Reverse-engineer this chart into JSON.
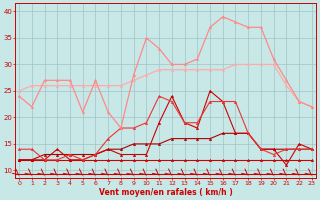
{
  "x": [
    0,
    1,
    2,
    3,
    4,
    5,
    6,
    7,
    8,
    9,
    10,
    11,
    12,
    13,
    14,
    15,
    16,
    17,
    18,
    19,
    20,
    21,
    22,
    23
  ],
  "series": [
    {
      "name": "flat_dark_bottom",
      "color": "#cc0000",
      "linewidth": 0.8,
      "marker": "^",
      "markersize": 1.8,
      "y": [
        12,
        12,
        12,
        12,
        12,
        12,
        12,
        12,
        12,
        12,
        12,
        12,
        12,
        12,
        12,
        12,
        12,
        12,
        12,
        12,
        12,
        12,
        12,
        12
      ]
    },
    {
      "name": "slight_rise_dark",
      "color": "#aa0000",
      "linewidth": 0.8,
      "marker": "^",
      "markersize": 1.8,
      "y": [
        12,
        12,
        13,
        13,
        13,
        13,
        13,
        14,
        14,
        15,
        15,
        15,
        16,
        16,
        16,
        16,
        17,
        17,
        17,
        14,
        14,
        14,
        14,
        14
      ]
    },
    {
      "name": "zigzag_dark",
      "color": "#cc0000",
      "linewidth": 0.8,
      "marker": "^",
      "markersize": 1.8,
      "y": [
        12,
        12,
        12,
        14,
        12,
        12,
        13,
        14,
        13,
        13,
        13,
        19,
        24,
        19,
        18,
        25,
        23,
        17,
        17,
        14,
        14,
        11,
        15,
        14
      ]
    },
    {
      "name": "medium_rise",
      "color": "#ee3333",
      "linewidth": 0.8,
      "marker": "^",
      "markersize": 1.8,
      "y": [
        14,
        14,
        12,
        12,
        13,
        12,
        13,
        16,
        18,
        18,
        19,
        24,
        23,
        19,
        19,
        23,
        23,
        23,
        17,
        14,
        13,
        14,
        14,
        14
      ]
    },
    {
      "name": "light_upper",
      "color": "#ffaaaa",
      "linewidth": 0.9,
      "marker": "^",
      "markersize": 1.8,
      "y": [
        25,
        26,
        26,
        26,
        26,
        26,
        26,
        26,
        26,
        27,
        28,
        29,
        29,
        29,
        29,
        29,
        29,
        30,
        30,
        30,
        30,
        26,
        23,
        22
      ]
    },
    {
      "name": "light_wavy",
      "color": "#ff8888",
      "linewidth": 0.9,
      "marker": "^",
      "markersize": 1.8,
      "y": [
        24,
        22,
        27,
        27,
        27,
        21,
        27,
        21,
        18,
        28,
        35,
        33,
        30,
        30,
        31,
        37,
        39,
        38,
        37,
        37,
        31,
        27,
        23,
        22
      ]
    }
  ],
  "xlabel": "Vent moyen/en rafales ( km/h )",
  "xlim": [
    -0.3,
    23.3
  ],
  "ylim": [
    8.5,
    41.5
  ],
  "yticks": [
    10,
    15,
    20,
    25,
    30,
    35,
    40
  ],
  "xticks": [
    0,
    1,
    2,
    3,
    4,
    5,
    6,
    7,
    8,
    9,
    10,
    11,
    12,
    13,
    14,
    15,
    16,
    17,
    18,
    19,
    20,
    21,
    22,
    23
  ],
  "background_color": "#c8e8e8",
  "grid_color": "#a0c4c4",
  "tick_color": "#cc0000",
  "label_color": "#cc0000",
  "arrow_color": "#cc0000",
  "bottom_line_y": 9.3
}
